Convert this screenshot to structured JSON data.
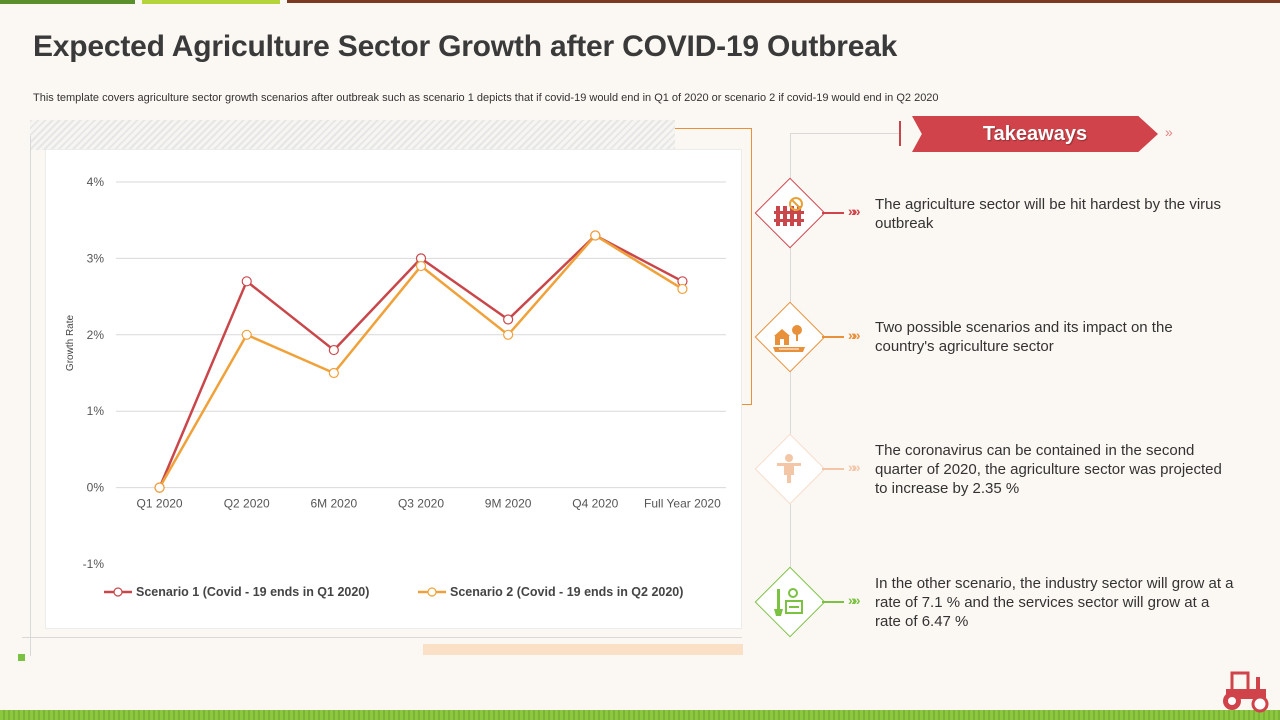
{
  "title": "Expected Agriculture Sector Growth after COVID-19 Outbreak",
  "subtitle": "This template covers agriculture sector growth scenarios after outbreak such as scenario 1 depicts that if covid-19 would end in Q1 of 2020 or scenario 2 if covid-19 would end in Q2 2020",
  "colors": {
    "scenario1": "#c9464a",
    "scenario2": "#f0a13a",
    "accent_red": "#d0434a",
    "accent_orange": "#e8903a",
    "accent_peach": "#f4c6a8",
    "accent_green": "#7cc242"
  },
  "chart_data": {
    "type": "line",
    "title": "",
    "xlabel": "",
    "ylabel": "Growth Rate",
    "categories": [
      "Q1 2020",
      "Q2 2020",
      "6M 2020",
      "Q3 2020",
      "9M 2020",
      "Q4 2020",
      "Full Year 2020"
    ],
    "series": [
      {
        "name": "Scenario 1 (Covid - 19 ends in Q1 2020)",
        "values": [
          0,
          2.7,
          1.8,
          3.0,
          2.2,
          3.3,
          2.7
        ]
      },
      {
        "name": "Scenario 2 (Covid - 19 ends in Q2 2020)",
        "values": [
          0,
          2.0,
          1.5,
          2.9,
          2.0,
          3.3,
          2.6
        ]
      }
    ],
    "ylim": [
      -1,
      4
    ],
    "yticks": [
      -1,
      0,
      1,
      2,
      3,
      4
    ],
    "ytick_labels": [
      "-1%",
      "0%",
      "1%",
      "2%",
      "3%",
      "4%"
    ],
    "grid": true,
    "legend": "bottom"
  },
  "takeaways": {
    "heading": "Takeaways",
    "items": [
      {
        "icon": "farm-fence-icon",
        "text": "The agriculture sector will be hit hardest by the virus outbreak"
      },
      {
        "icon": "barn-field-icon",
        "text": "Two possible scenarios and its impact on the country's  agriculture sector"
      },
      {
        "icon": "scarecrow-icon",
        "text": "The coronavirus  can be contained in the second quarter of 2020, the agriculture sector was projected to increase by 2.35 %"
      },
      {
        "icon": "gardening-tools-icon",
        "text": "In the other scenario, the industry sector will grow at a rate of 7.1 % and the services sector will grow at a rate of 6.47 %"
      }
    ]
  }
}
